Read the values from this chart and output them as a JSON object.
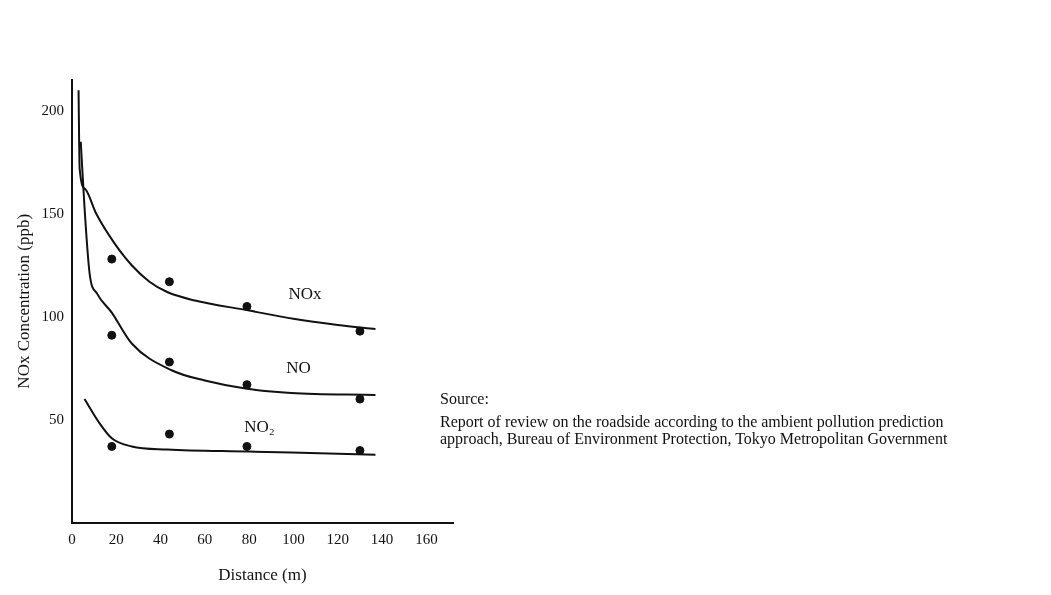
{
  "chart_data": {
    "type": "line",
    "xlabel": "Distance (m)",
    "ylabel": "NOx Concentration (ppb)",
    "xlim": [
      0,
      172
    ],
    "xticks": [
      0,
      20,
      40,
      60,
      80,
      100,
      120,
      140,
      160
    ],
    "ylim": [
      0,
      215
    ],
    "yticks": [
      50,
      100,
      150,
      200
    ],
    "grid": false,
    "legend": false,
    "line_style": "solid",
    "series": [
      {
        "name": "NOx",
        "marker": "none",
        "color": "#111111",
        "x": [
          3,
          3.5,
          6,
          11,
          19,
          27,
          35,
          43,
          55,
          80,
          100,
          120,
          137
        ],
        "values": [
          210,
          172,
          162,
          150,
          136,
          125,
          117,
          112,
          108,
          103,
          99,
          96,
          94
        ]
      },
      {
        "name": "NO",
        "marker": "none",
        "color": "#111111",
        "x": [
          4,
          5.7,
          8,
          11.5,
          18,
          27,
          45,
          60,
          79,
          99,
          137
        ],
        "values": [
          185,
          153,
          121,
          111,
          102,
          87,
          74,
          69,
          65,
          63,
          62
        ]
      },
      {
        "name": "NO₂",
        "marker": "none",
        "color": "#111111",
        "x": [
          5.7,
          12,
          18,
          27,
          43,
          80,
          137
        ],
        "values": [
          60,
          49,
          41,
          37,
          35.5,
          34.5,
          33
        ]
      },
      {
        "type": "scatter",
        "marker": "circle",
        "color": "#111111",
        "x": [
          18,
          44,
          79,
          130
        ],
        "values": [
          128,
          117,
          105,
          93
        ]
      },
      {
        "type": "scatter",
        "marker": "circle",
        "color": "#111111",
        "x": [
          18,
          44,
          79,
          130
        ],
        "values": [
          91,
          78,
          67,
          60
        ]
      },
      {
        "type": "scatter",
        "marker": "circle",
        "color": "#111111",
        "x": [
          18,
          44,
          79,
          130
        ],
        "values": [
          37,
          43,
          37,
          35
        ]
      }
    ],
    "annotations": [
      "Source:",
      "Report of review on the roadside according to the ambient pollution prediction approach, Bureau of Environment Protection, Tokyo Metropolitan Government"
    ]
  }
}
